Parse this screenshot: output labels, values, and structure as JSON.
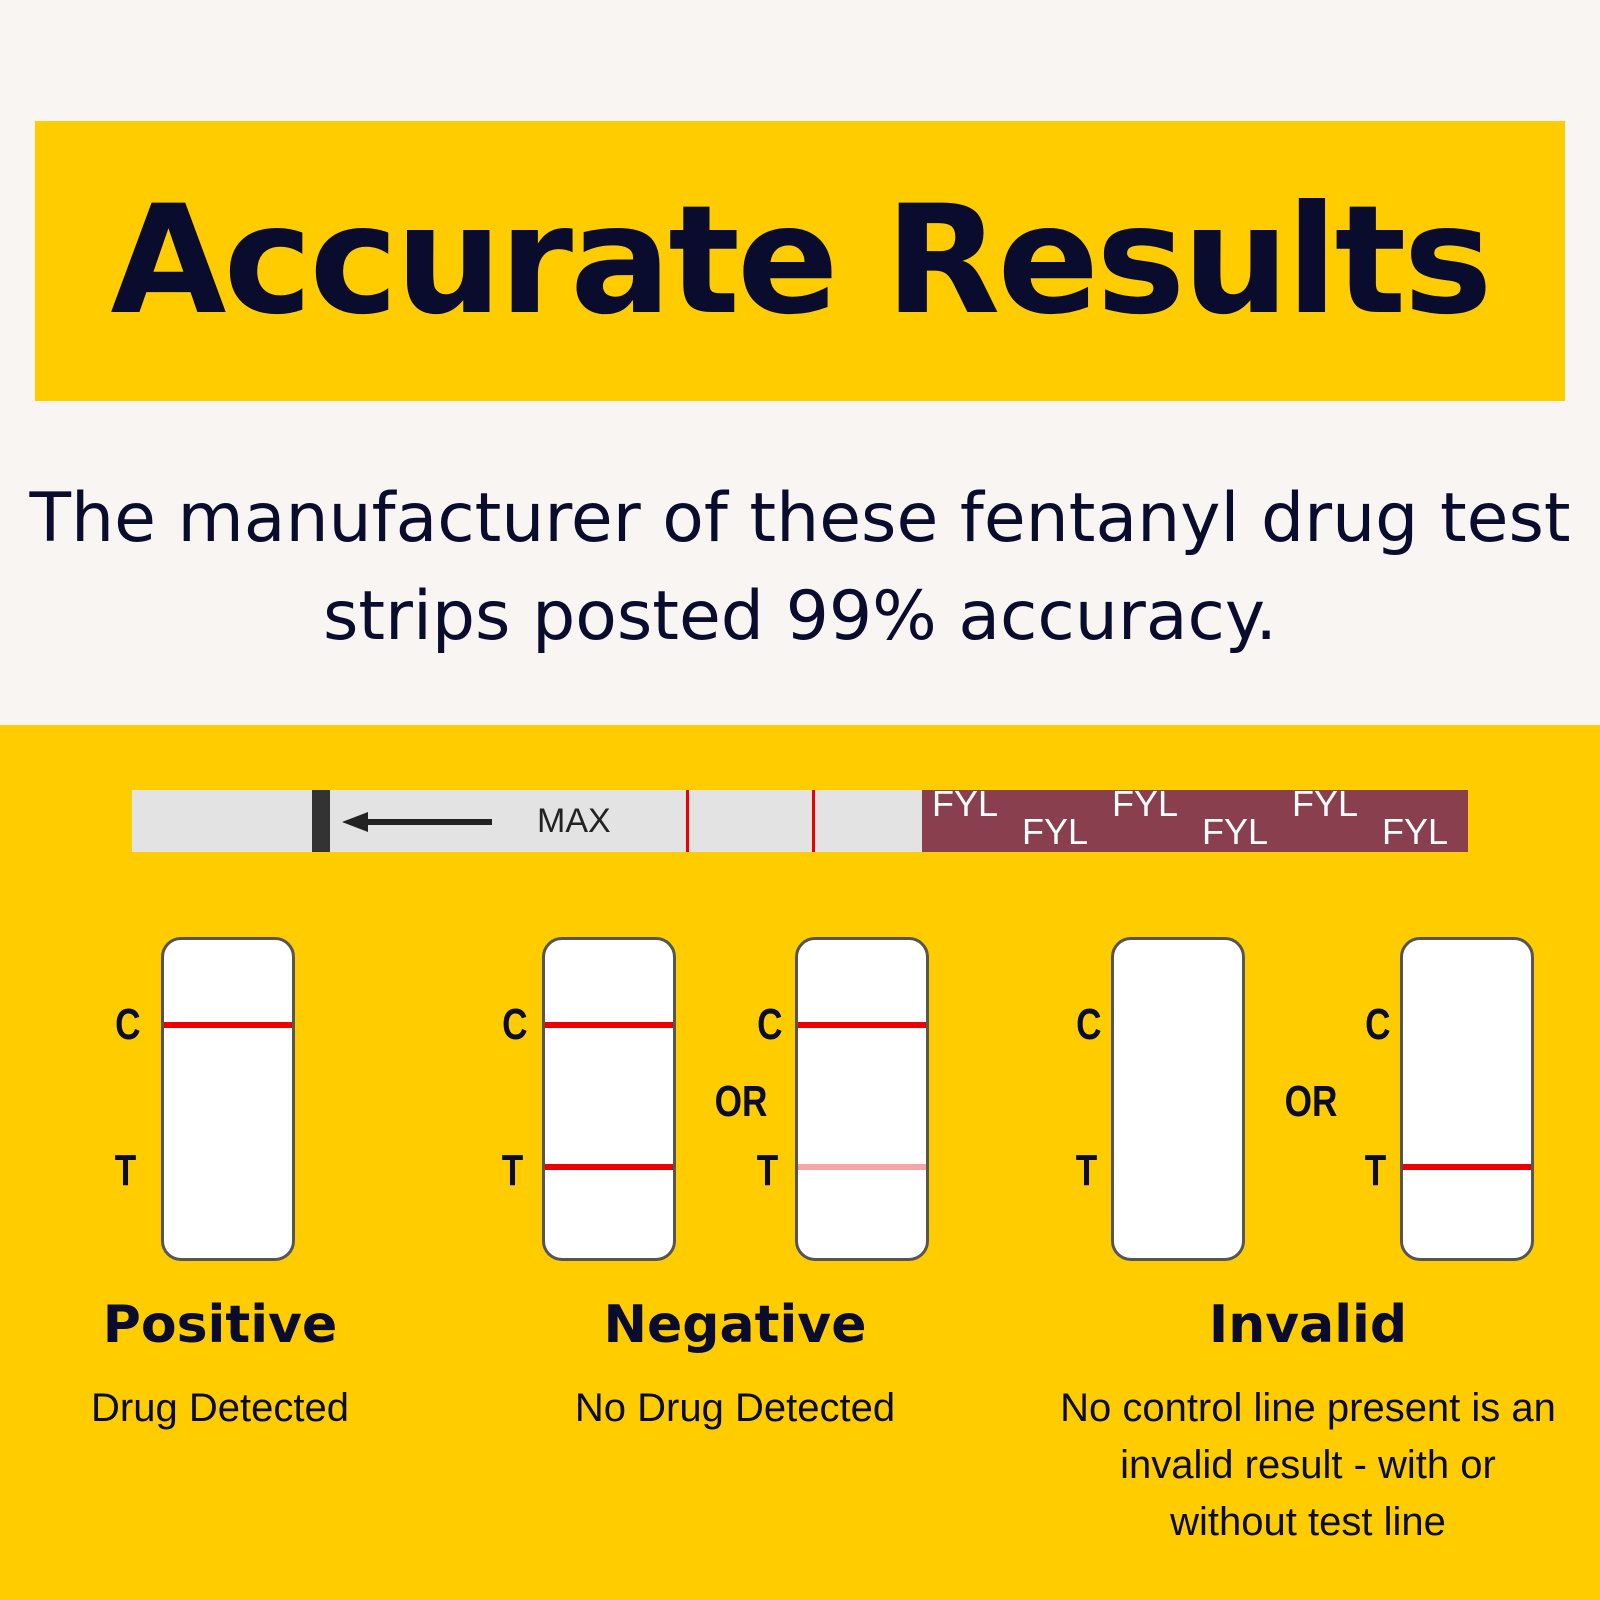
{
  "header": {
    "title": "Accurate Results",
    "subtitle": "The manufacturer of these fentanyl drug test strips posted 99% accuracy."
  },
  "strip": {
    "max_label": "MAX",
    "pad_label": "FYL"
  },
  "markers": {
    "control": "C",
    "test": "T",
    "or": "OR"
  },
  "results": [
    {
      "title": "Positive",
      "description": "Drug Detected"
    },
    {
      "title": "Negative",
      "description": "No Drug Detected"
    },
    {
      "title": "Invalid",
      "description": "No control line present is an invalid result - with or without test line"
    }
  ],
  "colors": {
    "yellow": "#ffcc00",
    "navy": "#0a0c2e",
    "line_red": "#e00000",
    "faint_red": "#f4a7a7",
    "pad": "#8a3f4f"
  }
}
